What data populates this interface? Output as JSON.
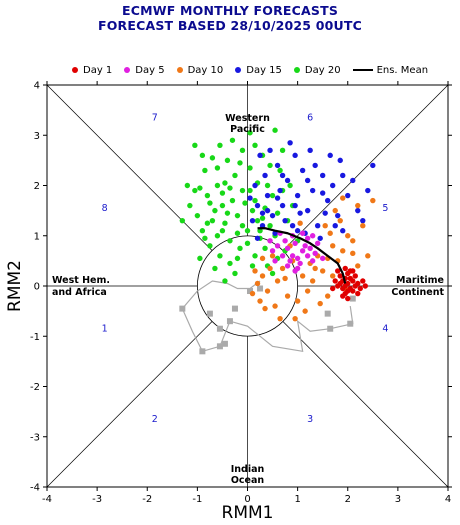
{
  "title_line1": "ECMWF MONTHLY FORECASTS",
  "title_line2": "FORECAST  BASED 28/10/2025 00UTC",
  "legend": [
    {
      "label": "Day 1",
      "color": "#e00000"
    },
    {
      "label": "Day 5",
      "color": "#e020e0"
    },
    {
      "label": "Day 10",
      "color": "#f07818"
    },
    {
      "label": "Day 15",
      "color": "#1818e0"
    },
    {
      "label": "Day 20",
      "color": "#18d818"
    }
  ],
  "ens_mean_label": "Ens. Mean",
  "chart_data": {
    "type": "scatter",
    "xlabel": "RMM1",
    "ylabel": "RMM2",
    "xlim": [
      -4,
      4
    ],
    "ylim": [
      -4,
      4
    ],
    "ticks": [
      -4,
      -3,
      -2,
      -1,
      0,
      1,
      2,
      3,
      4
    ],
    "unit_circle_radius": 1,
    "regions": {
      "top": [
        "Western",
        "Pacific"
      ],
      "bottom": [
        "Indian",
        "Ocean"
      ],
      "left": [
        "West Hem.",
        "and Africa"
      ],
      "right": [
        "Maritime",
        "Continent"
      ]
    },
    "phases": [
      {
        "label": "1",
        "x": -2.85,
        "y": -0.85
      },
      {
        "label": "2",
        "x": -1.85,
        "y": -2.65
      },
      {
        "label": "3",
        "x": 1.25,
        "y": -2.65
      },
      {
        "label": "4",
        "x": 2.75,
        "y": -0.85
      },
      {
        "label": "5",
        "x": 2.75,
        "y": 1.55
      },
      {
        "label": "6",
        "x": 1.25,
        "y": 3.35
      },
      {
        "label": "7",
        "x": -1.85,
        "y": 3.35
      },
      {
        "label": "8",
        "x": -2.85,
        "y": 1.55
      }
    ],
    "ensemble_mean": [
      [
        1.95,
        0.05
      ],
      [
        1.9,
        0.25
      ],
      [
        1.8,
        0.45
      ],
      [
        1.6,
        0.6
      ],
      [
        1.4,
        0.75
      ],
      [
        1.25,
        0.85
      ],
      [
        1.05,
        0.95
      ],
      [
        0.8,
        1.05
      ],
      [
        0.55,
        1.1
      ],
      [
        0.35,
        1.15
      ],
      [
        0.2,
        1.15
      ]
    ],
    "analysis": [
      [
        -0.75,
        -0.55
      ],
      [
        -0.55,
        -0.85
      ],
      [
        -0.45,
        -1.15
      ],
      [
        -0.55,
        -1.2
      ],
      [
        -0.9,
        -1.3
      ],
      [
        -1.3,
        -0.45
      ],
      [
        -0.35,
        -0.7
      ],
      [
        -0.25,
        -0.45
      ],
      [
        0.05,
        -0.1
      ],
      [
        0.25,
        -0.05
      ],
      [
        1.6,
        -0.55
      ],
      [
        1.65,
        -0.85
      ],
      [
        2.05,
        -0.75
      ],
      [
        2.1,
        -0.25
      ]
    ],
    "analysis_path": [
      [
        2.05,
        -0.4
      ],
      [
        2.1,
        -0.75
      ],
      [
        1.65,
        -0.85
      ],
      [
        1.25,
        -0.9
      ],
      [
        1.0,
        -0.7
      ],
      [
        1.1,
        -1.3
      ],
      [
        0.5,
        -1.2
      ],
      [
        0.0,
        -0.8
      ],
      [
        -0.35,
        -0.7
      ],
      [
        -0.55,
        -1.2
      ],
      [
        -0.9,
        -1.3
      ],
      [
        -1.1,
        -0.9
      ],
      [
        -1.3,
        -0.45
      ],
      [
        -1.0,
        -0.1
      ],
      [
        -0.7,
        0.1
      ],
      [
        -0.4,
        0.05
      ],
      [
        -0.2,
        -0.05
      ],
      [
        0.05,
        -0.05
      ],
      [
        0.25,
        0.1
      ]
    ],
    "series": [
      {
        "name": "Day 1",
        "color": "#e00000",
        "points": [
          [
            1.9,
            0.1
          ],
          [
            1.95,
            0.0
          ],
          [
            2.0,
            0.05
          ],
          [
            2.05,
            -0.05
          ],
          [
            1.85,
            0.05
          ],
          [
            2.1,
            0.1
          ],
          [
            1.95,
            0.15
          ],
          [
            2.0,
            -0.1
          ],
          [
            1.9,
            -0.05
          ],
          [
            2.15,
            0.0
          ],
          [
            2.05,
            0.15
          ],
          [
            1.8,
            0.0
          ],
          [
            2.2,
            0.05
          ],
          [
            1.95,
            -0.15
          ],
          [
            2.1,
            -0.1
          ],
          [
            1.85,
            0.2
          ],
          [
            2.0,
            0.25
          ],
          [
            2.25,
            -0.05
          ],
          [
            1.75,
            0.1
          ],
          [
            2.15,
            0.2
          ],
          [
            1.9,
            -0.2
          ],
          [
            2.3,
            0.1
          ],
          [
            2.05,
            0.3
          ],
          [
            1.7,
            -0.05
          ],
          [
            2.2,
            -0.15
          ],
          [
            1.95,
            0.35
          ],
          [
            2.1,
            0.3
          ],
          [
            1.8,
            0.3
          ],
          [
            2.35,
            0.0
          ],
          [
            2.0,
            -0.25
          ]
        ]
      },
      {
        "name": "Day 5",
        "color": "#e020e0",
        "points": [
          [
            0.9,
            0.6
          ],
          [
            1.0,
            0.55
          ],
          [
            1.1,
            0.7
          ],
          [
            0.8,
            0.75
          ],
          [
            1.2,
            0.6
          ],
          [
            0.95,
            0.85
          ],
          [
            1.05,
            0.45
          ],
          [
            0.85,
            0.5
          ],
          [
            1.15,
            0.8
          ],
          [
            0.75,
            0.9
          ],
          [
            1.25,
            0.75
          ],
          [
            0.7,
            0.6
          ],
          [
            1.3,
            0.5
          ],
          [
            0.9,
            1.0
          ],
          [
            1.0,
            0.35
          ],
          [
            0.6,
            0.8
          ],
          [
            1.35,
            0.65
          ],
          [
            0.65,
            1.05
          ],
          [
            1.2,
            0.95
          ],
          [
            0.5,
            0.7
          ],
          [
            1.4,
            0.85
          ],
          [
            0.8,
            0.4
          ],
          [
            1.1,
            1.05
          ],
          [
            0.45,
            0.9
          ],
          [
            1.5,
            0.55
          ],
          [
            0.95,
            0.3
          ],
          [
            0.55,
            0.5
          ],
          [
            1.3,
            1.0
          ]
        ]
      },
      {
        "name": "Day 10",
        "color": "#f07818",
        "points": [
          [
            1.5,
            0.3
          ],
          [
            1.7,
            0.2
          ],
          [
            1.3,
            0.1
          ],
          [
            1.8,
            0.5
          ],
          [
            1.2,
            -0.1
          ],
          [
            1.6,
            -0.2
          ],
          [
            1.9,
            0.7
          ],
          [
            1.0,
            -0.3
          ],
          [
            1.4,
            0.6
          ],
          [
            2.1,
            0.9
          ],
          [
            0.8,
            -0.2
          ],
          [
            1.1,
            0.2
          ],
          [
            1.7,
            0.8
          ],
          [
            0.6,
            0.1
          ],
          [
            2.2,
            0.4
          ],
          [
            0.9,
            0.5
          ],
          [
            1.45,
            -0.35
          ],
          [
            0.4,
            -0.1
          ],
          [
            2.3,
            1.2
          ],
          [
            1.25,
            0.45
          ],
          [
            0.7,
            0.35
          ],
          [
            0.3,
            0.2
          ],
          [
            1.65,
            1.05
          ],
          [
            0.55,
            -0.4
          ],
          [
            2.0,
            1.0
          ],
          [
            1.85,
            1.3
          ],
          [
            0.2,
            0.05
          ],
          [
            1.15,
            -0.5
          ],
          [
            2.4,
            0.6
          ],
          [
            0.35,
            -0.45
          ],
          [
            1.55,
            1.2
          ],
          [
            0.85,
            0.8
          ],
          [
            2.2,
            1.6
          ],
          [
            0.15,
            0.3
          ],
          [
            1.95,
            -0.05
          ],
          [
            0.95,
            -0.65
          ],
          [
            0.5,
            0.6
          ],
          [
            1.35,
            0.35
          ],
          [
            0.25,
            -0.3
          ],
          [
            2.5,
            1.7
          ],
          [
            1.75,
            1.5
          ],
          [
            0.45,
            0.35
          ],
          [
            1.05,
            1.25
          ],
          [
            0.65,
            -0.65
          ],
          [
            0.1,
            -0.15
          ],
          [
            2.1,
            0.65
          ],
          [
            1.6,
            0.55
          ],
          [
            0.75,
            0.15
          ],
          [
            1.9,
            1.75
          ],
          [
            0.3,
            0.55
          ]
        ]
      },
      {
        "name": "Day 15",
        "color": "#1818e0",
        "points": [
          [
            0.5,
            1.4
          ],
          [
            0.7,
            1.6
          ],
          [
            1.0,
            1.8
          ],
          [
            1.2,
            1.5
          ],
          [
            0.3,
            1.2
          ],
          [
            0.9,
            1.2
          ],
          [
            1.4,
            1.2
          ],
          [
            0.4,
            1.8
          ],
          [
            1.6,
            1.7
          ],
          [
            0.8,
            2.1
          ],
          [
            1.1,
            2.3
          ],
          [
            0.2,
            1.6
          ],
          [
            1.3,
            1.9
          ],
          [
            0.6,
            2.4
          ],
          [
            1.8,
            1.4
          ],
          [
            1.5,
            2.2
          ],
          [
            0.1,
            1.3
          ],
          [
            1.7,
            2.0
          ],
          [
            0.95,
            2.6
          ],
          [
            0.35,
            2.2
          ],
          [
            2.0,
            1.8
          ],
          [
            1.9,
            1.1
          ],
          [
            1.25,
            2.7
          ],
          [
            0.65,
            1.9
          ],
          [
            2.2,
            1.5
          ],
          [
            0.45,
            2.7
          ],
          [
            1.55,
            1.45
          ],
          [
            0.15,
            2.0
          ],
          [
            1.05,
            1.45
          ],
          [
            2.5,
            2.4
          ],
          [
            0.75,
            1.3
          ],
          [
            1.85,
            2.5
          ],
          [
            1.35,
            2.4
          ],
          [
            0.25,
            2.6
          ],
          [
            2.1,
            2.1
          ],
          [
            1.65,
            2.6
          ],
          [
            0.55,
            1.05
          ],
          [
            1.15,
            1.05
          ],
          [
            0.85,
            2.85
          ],
          [
            0.05,
            1.75
          ],
          [
            1.45,
            0.95
          ],
          [
            2.3,
            1.3
          ],
          [
            0.4,
            1.5
          ],
          [
            0.95,
            1.6
          ],
          [
            1.75,
            1.2
          ],
          [
            1.2,
            2.1
          ],
          [
            0.6,
            1.75
          ],
          [
            2.4,
            1.9
          ],
          [
            0.3,
            1.45
          ],
          [
            1.5,
            1.85
          ],
          [
            1.0,
            1.1
          ],
          [
            0.7,
            2.2
          ],
          [
            1.9,
            2.2
          ],
          [
            0.2,
            0.95
          ]
        ]
      },
      {
        "name": "Day 20",
        "color": "#18d818",
        "points": [
          [
            -0.2,
            1.4
          ],
          [
            -0.5,
            1.6
          ],
          [
            -0.1,
            1.9
          ],
          [
            -0.7,
            1.3
          ],
          [
            0.0,
            1.1
          ],
          [
            -0.35,
            0.9
          ],
          [
            -0.8,
            1.8
          ],
          [
            0.15,
            1.7
          ],
          [
            -0.45,
            1.25
          ],
          [
            -0.9,
            1.1
          ],
          [
            0.2,
            1.3
          ],
          [
            -0.6,
            2.0
          ],
          [
            -0.25,
            2.2
          ],
          [
            0.35,
            1.55
          ],
          [
            -1.0,
            1.4
          ],
          [
            -0.15,
            0.75
          ],
          [
            0.05,
            2.35
          ],
          [
            -0.75,
            0.8
          ],
          [
            -0.4,
            2.5
          ],
          [
            0.4,
            2.0
          ],
          [
            -1.05,
            1.9
          ],
          [
            0.25,
            0.95
          ],
          [
            -0.55,
            0.6
          ],
          [
            -0.3,
            1.7
          ],
          [
            0.1,
            1.5
          ],
          [
            -0.85,
            2.3
          ],
          [
            0.45,
            1.2
          ],
          [
            -0.65,
            1.5
          ],
          [
            0.0,
            0.85
          ],
          [
            -0.2,
            1.05
          ],
          [
            -1.2,
            2.0
          ],
          [
            0.5,
            1.8
          ],
          [
            -0.95,
            0.55
          ],
          [
            0.3,
            2.6
          ],
          [
            -0.45,
            2.05
          ],
          [
            -0.1,
            2.7
          ],
          [
            0.6,
            1.45
          ],
          [
            -0.7,
            2.55
          ],
          [
            0.15,
            0.6
          ],
          [
            -1.15,
            1.6
          ],
          [
            0.55,
            1.0
          ],
          [
            -0.35,
            0.45
          ],
          [
            0.35,
            0.75
          ],
          [
            -0.6,
            1.0
          ],
          [
            -0.05,
            1.65
          ],
          [
            0.7,
            1.9
          ],
          [
            -0.9,
            2.6
          ],
          [
            0.2,
            2.05
          ],
          [
            -0.25,
            0.25
          ],
          [
            0.45,
            2.4
          ],
          [
            -0.5,
            1.85
          ],
          [
            0.8,
            1.3
          ],
          [
            -1.3,
            1.3
          ],
          [
            0.05,
            3.05
          ],
          [
            -0.75,
            1.65
          ],
          [
            0.25,
            1.1
          ],
          [
            -0.15,
            2.45
          ],
          [
            0.65,
            2.3
          ],
          [
            -0.4,
            1.45
          ],
          [
            0.9,
            1.6
          ],
          [
            -0.55,
            2.8
          ],
          [
            0.1,
            0.4
          ],
          [
            -0.65,
            0.35
          ],
          [
            0.55,
            3.1
          ],
          [
            -0.8,
            1.25
          ],
          [
            0.4,
            0.4
          ],
          [
            -1.05,
            2.8
          ],
          [
            0.75,
            0.7
          ],
          [
            -0.3,
            2.9
          ],
          [
            0.3,
            1.35
          ],
          [
            -0.1,
            1.2
          ],
          [
            -0.2,
            0.55
          ],
          [
            0.85,
            2.0
          ],
          [
            -0.95,
            1.95
          ],
          [
            0.5,
            0.25
          ],
          [
            -0.6,
            2.35
          ],
          [
            0.15,
            2.8
          ],
          [
            -0.85,
            0.95
          ],
          [
            1.0,
            0.9
          ],
          [
            -0.45,
            0.1
          ],
          [
            0.6,
            0.55
          ],
          [
            -0.35,
            1.95
          ],
          [
            0.7,
            2.7
          ],
          [
            0.05,
            1.9
          ],
          [
            -0.5,
            1.1
          ]
        ]
      }
    ]
  }
}
